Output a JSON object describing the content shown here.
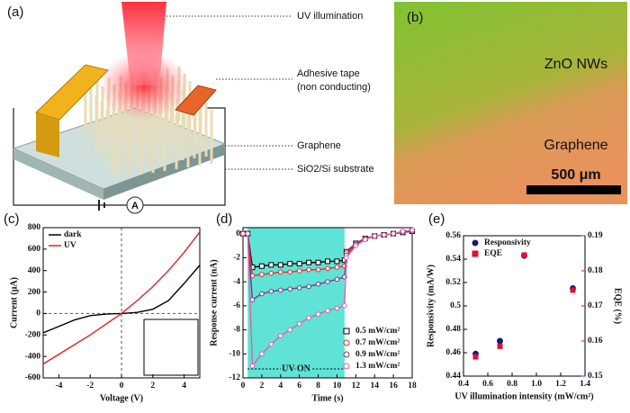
{
  "panel_labels": [
    "(a)",
    "(b)",
    "(c)",
    "(d)",
    "(e)"
  ],
  "schematic": {
    "labels": [
      "UV illumination",
      "Adhesive tape",
      "(non conducting)",
      "Graphene",
      "SiO2/Si substrate",
      "A"
    ]
  },
  "micrograph": {
    "labels": [
      "ZnO NWs",
      "Graphene"
    ],
    "scale_bar": "500 μm"
  },
  "chart_data": [
    {
      "type": "line",
      "xlabel": "Voltage (V)",
      "ylabel": "Current (μA)",
      "x": [
        -5,
        -4,
        -3,
        -2,
        -1,
        0,
        1,
        2,
        3,
        4,
        5
      ],
      "series": [
        {
          "name": "dark",
          "color": "#000000",
          "values": [
            -180,
            -120,
            -60,
            -20,
            -5,
            0,
            10,
            40,
            120,
            280,
            450
          ]
        },
        {
          "name": "UV",
          "color": "#e02020",
          "values": [
            -470,
            -380,
            -290,
            -200,
            -100,
            0,
            120,
            250,
            400,
            570,
            760
          ]
        }
      ],
      "xlim": [
        -5,
        5
      ],
      "xticks": [
        -4,
        -2,
        0,
        2,
        4
      ],
      "ylim": [
        -600,
        800
      ],
      "yticks": [
        -600,
        -400,
        -200,
        0,
        200,
        400,
        600,
        800
      ],
      "legend": "upper left"
    },
    {
      "type": "line",
      "xlabel": "Time (s)",
      "ylabel": "Response current (nA)",
      "x": [
        0,
        0.5,
        1,
        2,
        3,
        4,
        5,
        6,
        7,
        8,
        9,
        10,
        10.8,
        11,
        12,
        13,
        14,
        15,
        16,
        17,
        18
      ],
      "series": [
        {
          "name": "0.5 mW/cm²",
          "color": "#000000",
          "marker": "square",
          "values": [
            0,
            0,
            -2.8,
            -2.7,
            -2.6,
            -2.6,
            -2.5,
            -2.5,
            -2.4,
            -2.4,
            -2.3,
            -2.3,
            -2.2,
            -1.5,
            -0.8,
            -0.4,
            -0.2,
            -0.1,
            0,
            0.1,
            0.2
          ]
        },
        {
          "name": "0.7 mW/cm²",
          "color": "#e03030",
          "marker": "circle",
          "values": [
            0,
            0,
            -3.5,
            -3.4,
            -3.3,
            -3.2,
            -3.2,
            -3.1,
            -3,
            -3,
            -2.9,
            -2.8,
            -2.7,
            -1.6,
            -0.8,
            -0.4,
            -0.2,
            -0.1,
            0,
            0.1,
            0.2
          ]
        },
        {
          "name": "0.9 mW/cm²",
          "color": "#6a3d8a",
          "marker": "circle",
          "values": [
            0,
            0,
            -5.5,
            -5,
            -4.8,
            -4.7,
            -4.6,
            -4.5,
            -4.4,
            -4.2,
            -4,
            -3.8,
            -3.6,
            -1.8,
            -0.9,
            -0.4,
            -0.2,
            -0.1,
            0,
            0.1,
            0.2
          ]
        },
        {
          "name": "1.3 mW/cm²",
          "color": "#e060a8",
          "marker": "circle",
          "values": [
            0,
            0,
            -11,
            -10,
            -9.2,
            -8.5,
            -8,
            -7.5,
            -7,
            -6.7,
            -6.4,
            -6.2,
            -6,
            -2,
            -1,
            -0.5,
            -0.2,
            -0.1,
            0,
            0.2,
            0.3
          ]
        }
      ],
      "xlim": [
        0,
        18
      ],
      "xticks": [
        0,
        2,
        4,
        6,
        8,
        10,
        12,
        14,
        16,
        18
      ],
      "ylim": [
        -12,
        0.5
      ],
      "yticks": [
        -12,
        -10,
        -8,
        -6,
        -4,
        -2,
        0
      ],
      "shaded_region": {
        "xlim": [
          0.5,
          10.8
        ],
        "color": "#5fe3d6"
      },
      "annotation": "UV ON",
      "legend": "lower right"
    },
    {
      "type": "scatter",
      "xlabel": "UV illumination intensity (mW/cm²)",
      "ylabel": "Responsivity (mA/W)",
      "y2label": "EQE (%)",
      "x": [
        0.5,
        0.7,
        0.9,
        1.3
      ],
      "series": [
        {
          "name": "Responsivity",
          "color": "#1a1a6e",
          "marker": "circle",
          "values": [
            0.459,
            0.47,
            0.543,
            0.515
          ]
        },
        {
          "name": "EQE",
          "color": "#e01030",
          "marker": "square",
          "axis": "y2",
          "values": [
            0.1555,
            0.1585,
            0.1845,
            0.1745
          ]
        }
      ],
      "xlim": [
        0.4,
        1.4
      ],
      "xticks": [
        0.4,
        0.6,
        0.8,
        {
          "value": 1.0,
          "label": "1.0"
        },
        1.2,
        1.4
      ],
      "ylim": [
        0.44,
        0.56
      ],
      "yticks": [
        0.44,
        0.46,
        0.48,
        0.5,
        0.52,
        0.54,
        0.56
      ],
      "y2lim": [
        0.15,
        0.19
      ],
      "y2ticks": [
        0.15,
        0.16,
        0.17,
        0.18,
        0.19
      ],
      "legend": "upper left"
    }
  ]
}
